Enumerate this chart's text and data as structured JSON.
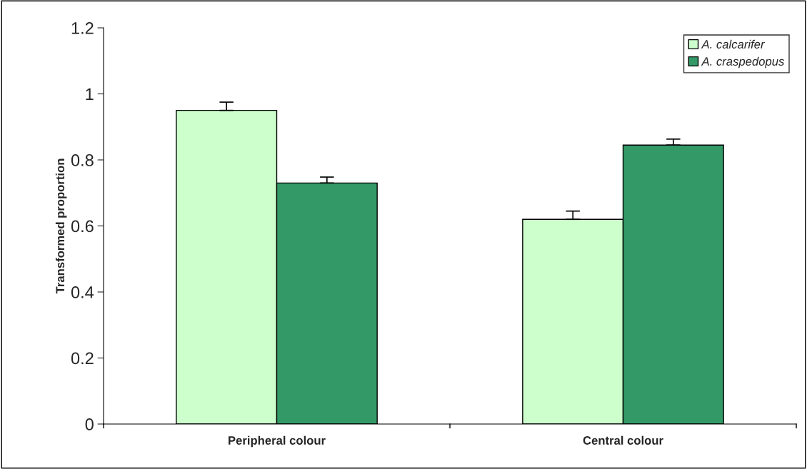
{
  "chart_data": {
    "type": "bar",
    "ylabel": "Transformed proportion",
    "categories": [
      "Peripheral colour",
      "Central colour"
    ],
    "series": [
      {
        "name": "A. calcarifer",
        "color": "#ccffcc",
        "values": [
          0.95,
          0.62
        ],
        "errors": [
          [
            0.95,
            0.975
          ],
          [
            0.62,
            0.645
          ]
        ]
      },
      {
        "name": "A. craspedopus",
        "color": "#339966",
        "values": [
          0.73,
          0.845
        ],
        "errors": [
          [
            0.73,
            0.748
          ],
          [
            0.845,
            0.863
          ]
        ]
      }
    ],
    "ylim": [
      0,
      1.2
    ],
    "yticks": [
      0,
      0.2,
      0.4,
      0.6,
      0.8,
      1,
      1.2
    ],
    "grid": false,
    "legend": "top right"
  }
}
